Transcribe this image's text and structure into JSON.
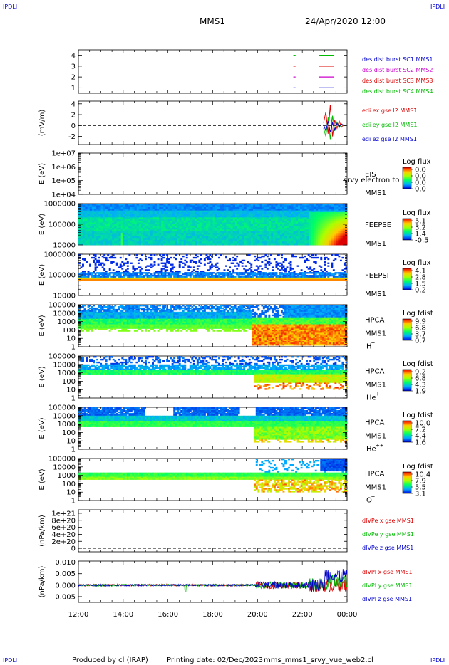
{
  "header": {
    "corner_tl": "IPDLI",
    "corner_tr": "IPDLI",
    "corner_bl": "IPDLI",
    "corner_br": "IPDLI",
    "title": "MMS1",
    "datetime": "24/Apr/2020 12:00"
  },
  "footer": {
    "produced": "Produced by cl (IRAP)",
    "printing": "Printing date: 02/Dec/2023",
    "file": "mms_mms1_srvy_vue_web2.cl"
  },
  "colors": {
    "blue": "#0000cc",
    "magenta": "#cc00cc",
    "red": "#dd0000",
    "green": "#00bb00"
  },
  "chart_data": [
    {
      "type": "line",
      "id": "burst",
      "title": "",
      "ylabel": "",
      "ylim": [
        0.5,
        4.5
      ],
      "yticks": [
        "1",
        "2",
        "3",
        "4"
      ],
      "legend": [
        {
          "name": "des dist burst SC1 MMS1",
          "color": "#0000cc"
        },
        {
          "name": "des dist burst SC2 MMS2",
          "color": "#cc00cc"
        },
        {
          "name": "des dist burst SC3 MMS3",
          "color": "#dd0000"
        },
        {
          "name": "des dist burst SC4 MMS4",
          "color": "#00bb00"
        }
      ],
      "segments": [
        {
          "sc": 4,
          "from": 21.6,
          "to": 21.7,
          "color": "#00bb00"
        },
        {
          "sc": 3,
          "from": 21.6,
          "to": 21.7,
          "color": "#dd0000"
        },
        {
          "sc": 2,
          "from": 21.6,
          "to": 21.7,
          "color": "#cc00cc"
        },
        {
          "sc": 1,
          "from": 21.6,
          "to": 21.7,
          "color": "#0000cc"
        },
        {
          "sc": 4,
          "from": 22.75,
          "to": 23.4,
          "color": "#00bb00"
        },
        {
          "sc": 3,
          "from": 22.75,
          "to": 23.4,
          "color": "#dd0000"
        },
        {
          "sc": 2,
          "from": 22.75,
          "to": 23.4,
          "color": "#cc00cc"
        },
        {
          "sc": 1,
          "from": 22.75,
          "to": 23.4,
          "color": "#0000cc"
        }
      ]
    },
    {
      "type": "line",
      "id": "edi",
      "ylabel": "(mV/m)",
      "ylim": [
        -3.5,
        4.5
      ],
      "yticks": [
        "-2",
        "0",
        "2",
        "4"
      ],
      "legend": [
        {
          "name": "edi ex gse l2 MMS1",
          "color": "#dd0000"
        },
        {
          "name": "edi ey gse l2 MMS1",
          "color": "#00bb00"
        },
        {
          "name": "edi ez gse l2 MMS1",
          "color": "#0000cc"
        }
      ],
      "series": [
        {
          "name": "edi ex gse l2 MMS1",
          "color": "#dd0000",
          "x": [
            22.95,
            23.05,
            23.15,
            23.25,
            23.35,
            23.45,
            23.55,
            23.65,
            23.75,
            23.85
          ],
          "values": [
            0.5,
            2.5,
            -1.5,
            3.8,
            -2.0,
            1.0,
            -0.5,
            0.8,
            -0.3,
            0.2
          ]
        },
        {
          "name": "edi ey gse l2 MMS1",
          "color": "#00bb00",
          "x": [
            22.95,
            23.05,
            23.15,
            23.25,
            23.35,
            23.45,
            23.55,
            23.65,
            23.75,
            23.85
          ],
          "values": [
            -0.5,
            -2.0,
            1.5,
            -2.5,
            1.8,
            -1.0,
            0.6,
            -0.4,
            0.3,
            -0.1
          ]
        },
        {
          "name": "edi ez gse l2 MMS1",
          "color": "#0000cc",
          "x": [
            22.95,
            23.05,
            23.15,
            23.25,
            23.35,
            23.45,
            23.55,
            23.65,
            23.75,
            23.85
          ],
          "values": [
            0.2,
            -1.0,
            0.8,
            -1.2,
            0.5,
            -0.8,
            0.4,
            -0.2,
            0.3,
            0.0
          ]
        }
      ]
    },
    {
      "type": "heatmap",
      "id": "eis",
      "ylabel": "E (eV)",
      "yscale": "log",
      "ylim": [
        10000,
        10000000
      ],
      "yticks": [
        "1e+07",
        "1e+06",
        "1e+05",
        "1e+04"
      ],
      "instrument": "EIS",
      "sc": "MMS1",
      "overlay": "srvy electron to",
      "colorbar": {
        "label": "Log flux",
        "ticks": [
          "0.0",
          "0.0",
          "0.0",
          "0.0"
        ]
      }
    },
    {
      "type": "heatmap",
      "id": "feepse",
      "ylabel": "E (eV)",
      "yscale": "log",
      "ylim": [
        10000,
        1000000
      ],
      "yticks": [
        "1000000",
        "100000",
        "10000"
      ],
      "instrument": "FEEPSE",
      "sc": "MMS1",
      "colorbar": {
        "label": "Log flux",
        "ticks": [
          "5.1",
          "3.2",
          "1.4",
          "-0.5"
        ]
      }
    },
    {
      "type": "heatmap",
      "id": "feepsi",
      "ylabel": "E (eV)",
      "yscale": "log",
      "ylim": [
        10000,
        1000000
      ],
      "yticks": [
        "1000000",
        "100000",
        "10000"
      ],
      "instrument": "FEEPSI",
      "sc": "MMS1",
      "colorbar": {
        "label": "Log flux",
        "ticks": [
          "4.1",
          "2.8",
          "1.5",
          "0.2"
        ]
      }
    },
    {
      "type": "heatmap",
      "id": "hpca_h",
      "ylabel": "E (eV)",
      "yscale": "log",
      "ylim": [
        1,
        100000
      ],
      "yticks": [
        "100000",
        "10000",
        "1000",
        "100",
        "10",
        "1"
      ],
      "instrument": "HPCA",
      "sc": "MMS1",
      "species": "H",
      "charge": "+",
      "colorbar": {
        "label": "Log fdist",
        "ticks": [
          "9.9",
          "6.8",
          "3.7",
          "0.7"
        ]
      }
    },
    {
      "type": "heatmap",
      "id": "hpca_he",
      "ylabel": "E (eV)",
      "yscale": "log",
      "ylim": [
        1,
        100000
      ],
      "yticks": [
        "100000",
        "10000",
        "1000",
        "100",
        "10",
        "1"
      ],
      "instrument": "HPCA",
      "sc": "MMS1",
      "species": "He",
      "charge": "+",
      "colorbar": {
        "label": "Log fdist",
        "ticks": [
          "9.2",
          "6.8",
          "4.3",
          "1.9"
        ]
      }
    },
    {
      "type": "heatmap",
      "id": "hpca_he2",
      "ylabel": "E (eV)",
      "yscale": "log",
      "ylim": [
        1,
        100000
      ],
      "yticks": [
        "100000",
        "10000",
        "1000",
        "100",
        "10",
        "1"
      ],
      "instrument": "HPCA",
      "sc": "MMS1",
      "species": "He",
      "charge": "++",
      "colorbar": {
        "label": "Log fdist",
        "ticks": [
          "10.0",
          "7.2",
          "4.4",
          "1.6"
        ]
      }
    },
    {
      "type": "heatmap",
      "id": "hpca_o",
      "ylabel": "E (eV)",
      "yscale": "log",
      "ylim": [
        1,
        100000
      ],
      "yticks": [
        "100000",
        "10000",
        "1000",
        "100",
        "10",
        "1"
      ],
      "instrument": "HPCA",
      "sc": "MMS1",
      "species": "O",
      "charge": "+",
      "colorbar": {
        "label": "Log fdist",
        "ticks": [
          "10.4",
          "7.9",
          "5.5",
          "3.1"
        ]
      }
    },
    {
      "type": "line",
      "id": "divpe",
      "ylabel": "(nPa/km)",
      "ylim": [
        -1e+20,
        1.1e+21
      ],
      "yticks": [
        "1e+21",
        "8e+20",
        "6e+20",
        "4e+20",
        "2e+20",
        "0"
      ],
      "legend": [
        {
          "name": "dIVPe x gse MMS1",
          "color": "#dd0000"
        },
        {
          "name": "dIVPe y gse MMS1",
          "color": "#00bb00"
        },
        {
          "name": "dIVPe z gse MMS1",
          "color": "#0000cc"
        }
      ]
    },
    {
      "type": "line",
      "id": "divpi",
      "ylabel": "(nPa/km)",
      "ylim": [
        -0.0075,
        0.0105
      ],
      "yticks": [
        "0.010",
        "0.005",
        "0.000",
        "-0.005"
      ],
      "legend": [
        {
          "name": "dIVPI x gse MMS1",
          "color": "#dd0000"
        },
        {
          "name": "dIVPI y gse MMS1",
          "color": "#00bb00"
        },
        {
          "name": "dIVPI z gse MMS1",
          "color": "#0000cc"
        }
      ]
    }
  ],
  "time_axis": {
    "start": 12,
    "end": 24,
    "ticks": [
      "12:00",
      "14:00",
      "16:00",
      "18:00",
      "20:00",
      "22:00",
      "00:00"
    ]
  }
}
